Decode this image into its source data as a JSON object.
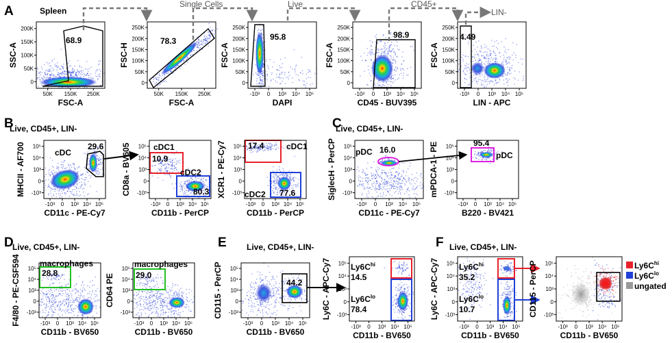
{
  "figure": {
    "panel_letters": [
      "A",
      "B",
      "C",
      "D",
      "E",
      "F"
    ],
    "flow_labels": [
      "Single Cells",
      "Live",
      "CD45+",
      "LIN-"
    ],
    "titles": [
      "Live, CD45+, LIN-",
      "Live, CD45+, LIN-",
      "Live, CD45+, LIN-",
      "Live, CD45+, LIN-",
      "Live, CD45+, LIN-"
    ]
  },
  "colors": {
    "red": "#e8202a",
    "blue": "#1f3fd6",
    "magenta": "#e020e0",
    "green": "#20c020",
    "black": "#000000",
    "grey": "#999999",
    "arrow": "#777777"
  },
  "ticks": {
    "lin": [
      "50K",
      "150K",
      "250K"
    ],
    "linY": [
      "250K",
      "200K",
      "150K",
      "100K",
      "50K",
      "0"
    ],
    "logX": [
      "-10³",
      "0",
      "10³",
      "10⁴",
      "10⁵"
    ],
    "logY": [
      "10⁵",
      "10⁴",
      "10³",
      "0",
      "-10³"
    ],
    "linX2": [
      "50K",
      "150K",
      "250K"
    ]
  },
  "chart_data": [
    {
      "type": "scatter",
      "id": "A1",
      "title": "Spleen",
      "xlabel": "FSC-A",
      "ylabel": "SSC-A",
      "gates": [
        {
          "label": "68.9"
        }
      ],
      "xticks": [
        "50K",
        "150K",
        "250K"
      ],
      "yticks": [
        "200K",
        "150K",
        "100K",
        "50K",
        "0"
      ]
    },
    {
      "type": "scatter",
      "id": "A2",
      "xlabel": "FSC-A",
      "ylabel": "FSC-H",
      "gates": [
        {
          "label": "78.3"
        }
      ],
      "xticks": [
        "50K",
        "150K",
        "250K"
      ],
      "yticks": [
        "250K",
        "200K",
        "150K",
        "100K",
        "50K",
        "0"
      ]
    },
    {
      "type": "scatter",
      "id": "A3",
      "xlabel": "DAPI",
      "ylabel": "FSC-A",
      "gates": [
        {
          "label": "95.8"
        }
      ],
      "xticks": [
        "-10³",
        "0",
        "10³",
        "10⁴",
        "10⁵"
      ],
      "yticks": [
        "250K",
        "200K",
        "150K",
        "100K",
        "50K",
        "0"
      ]
    },
    {
      "type": "scatter",
      "id": "A4",
      "xlabel": "CD45 - BUV395",
      "ylabel": "FSC-A",
      "gates": [
        {
          "label": "98.9"
        }
      ],
      "xticks": [
        "-10³",
        "0",
        "10³",
        "10⁴",
        "10⁵"
      ],
      "yticks": [
        "250K",
        "200K",
        "150K",
        "100K",
        "50K",
        "0"
      ]
    },
    {
      "type": "scatter",
      "id": "A5",
      "xlabel": "LIN - APC",
      "ylabel": "FSC-A",
      "gates": [
        {
          "label": "4.49"
        }
      ],
      "xticks": [
        "-10³",
        "0",
        "10³",
        "10⁴",
        "10⁵"
      ],
      "yticks": [
        "250K",
        "200K",
        "150K",
        "100K",
        "50K",
        "0"
      ]
    },
    {
      "type": "scatter",
      "id": "B1",
      "xlabel": "CD11c - PE-Cy7",
      "ylabel": "MHCII - AF700",
      "gates": [
        {
          "label": "29.6",
          "name": "cDC"
        }
      ]
    },
    {
      "type": "scatter",
      "id": "B2",
      "xlabel": "CD11b - PerCP",
      "ylabel": "CD8a - BV605",
      "gates": [
        {
          "label": "10.9",
          "name": "cDC1"
        },
        {
          "label": "80.3",
          "name": "cDC2"
        }
      ]
    },
    {
      "type": "scatter",
      "id": "B3",
      "xlabel": "CD11b - PerCP",
      "ylabel": "XCR1 - PE-Cy7",
      "gates": [
        {
          "label": "17.4",
          "name": "cDC1"
        },
        {
          "label": "77.6",
          "name": "cDC2"
        }
      ]
    },
    {
      "type": "scatter",
      "id": "C1",
      "xlabel": "CD11c - PE-Cy7",
      "ylabel": "SiglecH - PerCP",
      "gates": [
        {
          "label": "16.0",
          "name": "pDC"
        }
      ]
    },
    {
      "type": "scatter",
      "id": "C2",
      "xlabel": "B220 - BV421",
      "ylabel": "mPDCA-1 - PE",
      "gates": [
        {
          "label": "95.4",
          "name": "pDC"
        }
      ]
    },
    {
      "type": "scatter",
      "id": "D1",
      "xlabel": "CD11b - BV650",
      "ylabel": "F4/80 - PE-CSF594",
      "gates": [
        {
          "label": "28.8",
          "name": "macrophages"
        }
      ]
    },
    {
      "type": "scatter",
      "id": "D2",
      "xlabel": "CD11b - BV650",
      "ylabel": "CD64 PE",
      "gates": [
        {
          "label": "29.0",
          "name": "macrophages"
        }
      ]
    },
    {
      "type": "scatter",
      "id": "E1",
      "xlabel": "CD11b - BV650",
      "ylabel": "CD115 - PerCP",
      "gates": [
        {
          "label": "44.2"
        }
      ]
    },
    {
      "type": "scatter",
      "id": "E2",
      "xlabel": "CD11b - BV650",
      "ylabel": "Ly6C - APC-Cy7",
      "gates": [
        {
          "label": "14.5",
          "name": "Ly6C",
          "sup": "hi"
        },
        {
          "label": "78.4",
          "name": "Ly6C",
          "sup": "lo"
        }
      ]
    },
    {
      "type": "scatter",
      "id": "F1",
      "xlabel": "CD11b - BV650",
      "ylabel": "Ly6C - APC-Cy7",
      "gates": [
        {
          "label": "35.2",
          "name": "Ly6C",
          "sup": "hi"
        },
        {
          "label": "10.7",
          "name": "Ly6C",
          "sup": "lo"
        }
      ]
    },
    {
      "type": "scatter",
      "id": "F2",
      "xlabel": "CD11b - BV650",
      "ylabel": "CD115 - PerCP",
      "gates": [],
      "legend": [
        {
          "name": "Ly6C",
          "sup": "hi",
          "color": "#e8202a"
        },
        {
          "name": "Ly6C",
          "sup": "lo",
          "color": "#1f3fd6"
        },
        {
          "name": "ungated",
          "sup": "",
          "color": "#999999"
        }
      ]
    }
  ]
}
